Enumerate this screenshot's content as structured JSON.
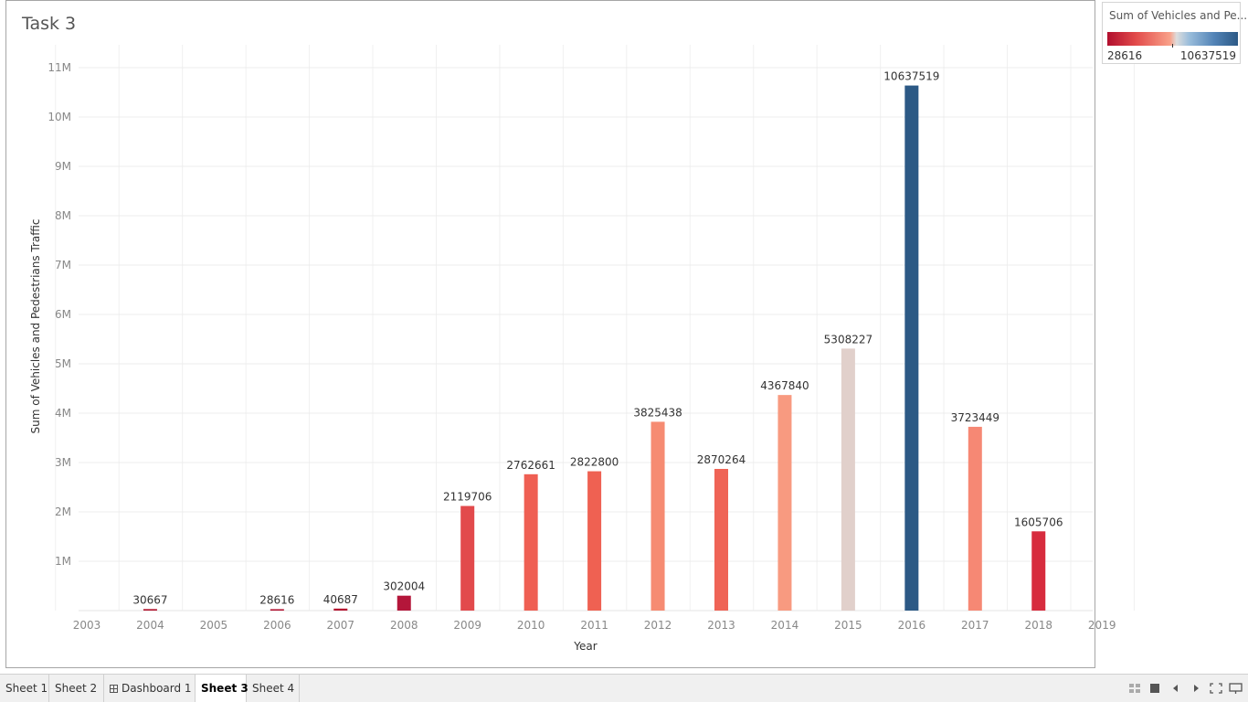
{
  "sheet": {
    "title": "Task 3"
  },
  "chart_data": {
    "type": "bar",
    "ylabel": "Sum of Vehicles and Pedestrians Traffic",
    "xlabel": "Year",
    "ylim": [
      0,
      11500000
    ],
    "y_ticks": [
      1000000,
      2000000,
      3000000,
      4000000,
      5000000,
      6000000,
      7000000,
      8000000,
      9000000,
      10000000,
      11000000
    ],
    "y_tick_labels": [
      "1M",
      "2M",
      "3M",
      "4M",
      "5M",
      "6M",
      "7M",
      "8M",
      "9M",
      "10M",
      "11M"
    ],
    "categories": [
      "2003",
      "2004",
      "2005",
      "2006",
      "2007",
      "2008",
      "2009",
      "2010",
      "2011",
      "2012",
      "2013",
      "2014",
      "2015",
      "2016",
      "2017",
      "2018",
      "2019"
    ],
    "values": [
      null,
      30667,
      null,
      28616,
      40687,
      302004,
      2119706,
      2762661,
      2822800,
      3825438,
      2870264,
      4367840,
      5308227,
      10637519,
      3723449,
      1605706,
      null
    ],
    "colors": [
      null,
      "#b2152f",
      null,
      "#b10f2e",
      "#b41530",
      "#b4163a",
      "#e24a4c",
      "#ef5f53",
      "#ef6152",
      "#f68b72",
      "#ef6456",
      "#f89a80",
      "#e1d0cb",
      "#2c5985",
      "#f68874",
      "#d72c3e",
      null
    ],
    "grid": true,
    "legend": {
      "title": "Sum of Vehicles and Pe...",
      "min_label": "28616",
      "max_label": "10637519",
      "colors": [
        "#b10f2e",
        "#f9a189",
        "#dddddd",
        "#2c5985"
      ],
      "placement": "top-right"
    }
  },
  "tabs": [
    {
      "label": "Sheet 1",
      "active": false
    },
    {
      "label": "Sheet 2",
      "active": false
    },
    {
      "label": "Dashboard 1",
      "active": false,
      "icon": "dashboard-grid-icon"
    },
    {
      "label": "Sheet 3",
      "active": true
    },
    {
      "label": "Sheet 4",
      "active": false
    }
  ],
  "toolbar_icons": [
    "show-sheet-sorter-icon",
    "show-filmstrip-icon",
    "prev-sheet-icon",
    "next-sheet-icon",
    "fullscreen-icon",
    "presentation-mode-icon"
  ]
}
